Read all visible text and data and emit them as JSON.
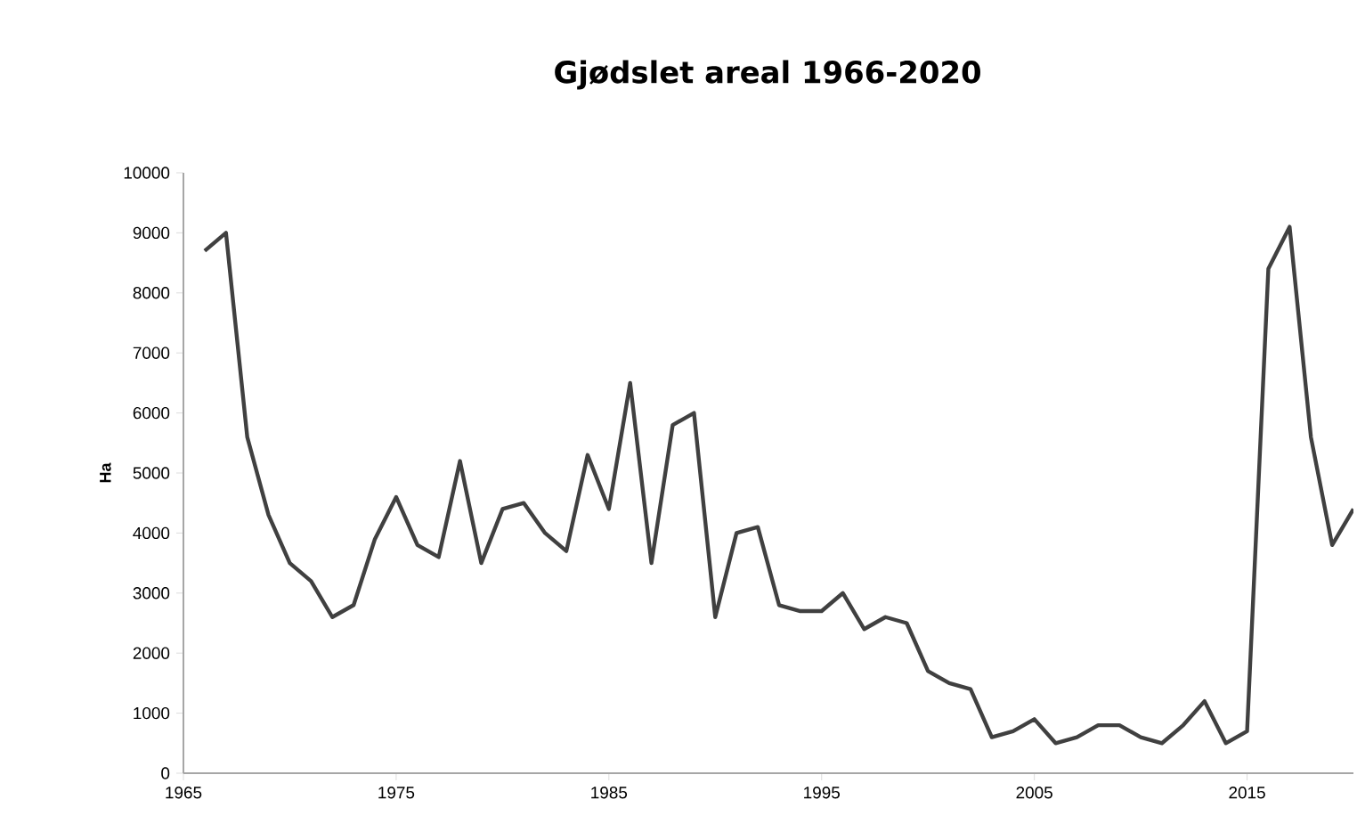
{
  "chart_data": {
    "type": "line",
    "title": "Gjødslet areal 1966-2020",
    "ylabel": "Ha",
    "x": [
      1966,
      1967,
      1968,
      1969,
      1970,
      1971,
      1972,
      1973,
      1974,
      1975,
      1976,
      1977,
      1978,
      1979,
      1980,
      1981,
      1982,
      1983,
      1984,
      1985,
      1986,
      1987,
      1988,
      1989,
      1990,
      1991,
      1992,
      1993,
      1994,
      1995,
      1996,
      1997,
      1998,
      1999,
      2000,
      2001,
      2002,
      2003,
      2004,
      2005,
      2006,
      2007,
      2008,
      2009,
      2010,
      2011,
      2012,
      2013,
      2014,
      2015,
      2016,
      2017,
      2018,
      2019,
      2020
    ],
    "series": [
      {
        "color": "#404040",
        "values": [
          8700,
          9000,
          5600,
          4300,
          3500,
          3200,
          2600,
          2800,
          3900,
          4600,
          3800,
          3600,
          5200,
          3500,
          4400,
          4500,
          4000,
          3700,
          5300,
          4400,
          6500,
          3500,
          5800,
          6000,
          2600,
          4000,
          4100,
          2800,
          2700,
          2700,
          3000,
          2400,
          2600,
          2500,
          1700,
          1500,
          1400,
          600,
          700,
          900,
          500,
          600,
          800,
          800,
          600,
          500,
          800,
          1200,
          500,
          700,
          8400,
          9100,
          5600,
          3800,
          4400
        ]
      }
    ],
    "xlim": [
      1965,
      2020
    ],
    "xticks": [
      1965,
      1975,
      1985,
      1995,
      2005,
      2015
    ],
    "ylim": [
      0,
      10000
    ],
    "yticks": [
      0,
      1000,
      2000,
      3000,
      4000,
      5000,
      6000,
      7000,
      8000,
      9000,
      10000
    ],
    "marker": "none",
    "line_style": "solid"
  }
}
